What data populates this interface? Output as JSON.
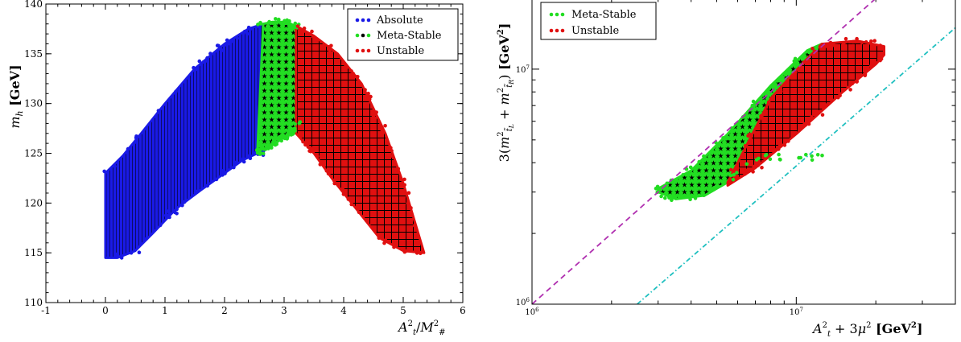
{
  "chart_data": [
    {
      "type": "scatter",
      "xlabel": "A_t^2/M_#^2",
      "ylabel": "m_h [GeV]",
      "xlim": [
        -1,
        6
      ],
      "ylim": [
        110,
        140
      ],
      "x_ticks": [
        "-1",
        "0",
        "1",
        "2",
        "3",
        "4",
        "5",
        "6"
      ],
      "y_ticks": [
        "110",
        "115",
        "120",
        "125",
        "130",
        "135",
        "140"
      ],
      "grid": false,
      "legend_position": "top-right",
      "series": [
        {
          "name": "Absolute",
          "color": "#1a1ae6",
          "marker": "dot",
          "region": {
            "lower": [
              [
                0.0,
                114.5
              ],
              [
                0.2,
                114.5
              ],
              [
                0.5,
                115.2
              ],
              [
                0.8,
                117.0
              ],
              [
                1.2,
                119.5
              ],
              [
                1.6,
                121.3
              ],
              [
                2.0,
                123.0
              ],
              [
                2.3,
                124.3
              ],
              [
                2.55,
                125.0
              ]
            ],
            "upper": [
              [
                0.0,
                123.0
              ],
              [
                0.3,
                124.8
              ],
              [
                0.6,
                127.0
              ],
              [
                1.0,
                130.0
              ],
              [
                1.5,
                133.5
              ],
              [
                2.0,
                136.0
              ],
              [
                2.4,
                137.5
              ],
              [
                2.65,
                138.0
              ]
            ]
          }
        },
        {
          "name": "Meta-Stable",
          "color": "#22dd22",
          "marker": "star",
          "region": {
            "lower": [
              [
                2.55,
                125.0
              ],
              [
                2.8,
                125.8
              ],
              [
                3.1,
                127.0
              ],
              [
                3.25,
                128.0
              ]
            ],
            "upper": [
              [
                2.65,
                138.0
              ],
              [
                2.8,
                138.2
              ],
              [
                3.0,
                138.2
              ],
              [
                3.2,
                137.8
              ]
            ]
          }
        },
        {
          "name": "Unstable",
          "color": "#e01010",
          "marker": "dot",
          "region": {
            "lower": [
              [
                3.2,
                127.0
              ],
              [
                3.5,
                125.0
              ],
              [
                3.8,
                122.5
              ],
              [
                4.2,
                119.5
              ],
              [
                4.6,
                116.5
              ],
              [
                5.0,
                115.2
              ],
              [
                5.35,
                115.0
              ]
            ],
            "upper": [
              [
                3.2,
                137.8
              ],
              [
                3.5,
                136.8
              ],
              [
                3.9,
                135.0
              ],
              [
                4.3,
                132.0
              ],
              [
                4.7,
                127.0
              ],
              [
                5.0,
                122.0
              ],
              [
                5.25,
                117.0
              ],
              [
                5.35,
                115.0
              ]
            ]
          }
        }
      ]
    },
    {
      "type": "scatter",
      "xscale": "log",
      "yscale": "log",
      "xlabel": "A_t^2 + 3μ^2 [GeV^2]",
      "ylabel": "3(m^2_t̃L + m^2_t̃R) [GeV^2]",
      "xlim": [
        1000000,
        40000000
      ],
      "ylim": [
        1000000,
        20000000
      ],
      "x_tick_labels": [
        "10^6",
        "10^7"
      ],
      "y_tick_labels": [
        "10^6",
        "10^7"
      ],
      "grid": false,
      "legend_position": "top-left",
      "series": [
        {
          "name": "Meta-Stable",
          "color": "#22dd22",
          "marker": "star",
          "region": {
            "lower": [
              [
                3000000,
                3000000
              ],
              [
                3500000,
                2800000
              ],
              [
                4500000,
                2900000
              ],
              [
                5500000,
                3300000
              ],
              [
                7000000,
                4200000
              ]
            ],
            "upper": [
              [
                3000000,
                3100000
              ],
              [
                4000000,
                3700000
              ],
              [
                5500000,
                5300000
              ],
              [
                8000000,
                8500000
              ],
              [
                11000000,
                12000000
              ],
              [
                12500000,
                12800000
              ]
            ]
          }
        },
        {
          "name": "Unstable",
          "color": "#e01010",
          "marker": "dot",
          "region": {
            "lower": [
              [
                5500000,
                3200000
              ],
              [
                7000000,
                3800000
              ],
              [
                10000000,
                5300000
              ],
              [
                15000000,
                8000000
              ],
              [
                20000000,
                10500000
              ],
              [
                21500000,
                11500000
              ]
            ],
            "upper": [
              [
                5500000,
                3300000
              ],
              [
                8000000,
                7500000
              ],
              [
                10500000,
                10500000
              ],
              [
                12500000,
                12800000
              ],
              [
                17000000,
                13200000
              ],
              [
                21500000,
                12500000
              ]
            ]
          }
        }
      ],
      "reference_lines": [
        {
          "style": "dashed",
          "color": "#b030b0",
          "from": [
            1000000,
            1000000
          ],
          "to": [
            40000000,
            40000000
          ]
        },
        {
          "style": "dash-dot",
          "color": "#20c0c0",
          "from": [
            2500000,
            1000000
          ],
          "to": [
            40000000,
            15000000
          ]
        }
      ]
    }
  ]
}
